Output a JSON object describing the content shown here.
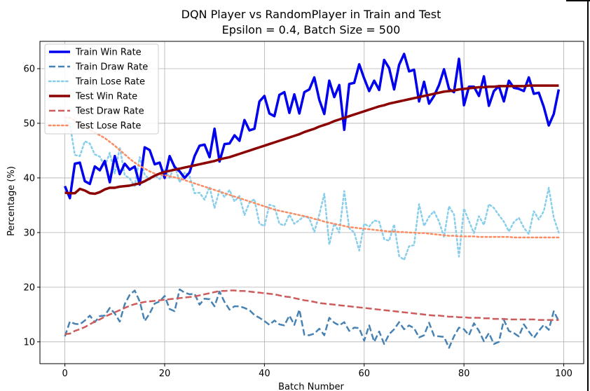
{
  "chart_data": {
    "type": "line",
    "title": "DQN Player vs RandomPlayer in Train and Test",
    "subtitle": "Epsilon = 0.4, Batch Size = 500",
    "xlabel": "Batch Number",
    "ylabel": "Percentage (%)",
    "xlim": [
      -5,
      104
    ],
    "ylim": [
      6,
      65
    ],
    "xticks": [
      0,
      20,
      40,
      60,
      80,
      100
    ],
    "yticks": [
      10,
      20,
      30,
      40,
      50,
      60
    ],
    "grid": true,
    "legend_position": "top-left",
    "x": [
      0,
      1,
      2,
      3,
      4,
      5,
      6,
      7,
      8,
      9,
      10,
      11,
      12,
      13,
      14,
      15,
      16,
      17,
      18,
      19,
      20,
      21,
      22,
      23,
      24,
      25,
      26,
      27,
      28,
      29,
      30,
      31,
      32,
      33,
      34,
      35,
      36,
      37,
      38,
      39,
      40,
      41,
      42,
      43,
      44,
      45,
      46,
      47,
      48,
      49,
      50,
      51,
      52,
      53,
      54,
      55,
      56,
      57,
      58,
      59,
      60,
      61,
      62,
      63,
      64,
      65,
      66,
      67,
      68,
      69,
      70,
      71,
      72,
      73,
      74,
      75,
      76,
      77,
      78,
      79,
      80,
      81,
      82,
      83,
      84,
      85,
      86,
      87,
      88,
      89,
      90,
      91,
      92,
      93,
      94,
      95,
      96,
      97,
      98,
      99
    ],
    "series": [
      {
        "name": "Train Win Rate",
        "color": "#0000ee",
        "style": "solid",
        "width": 3.5,
        "values": [
          38.5,
          36.3,
          42.6,
          42.8,
          39.4,
          38.9,
          42.1,
          41.4,
          43.1,
          39.2,
          44.0,
          40.7,
          42.6,
          41.5,
          42.1,
          38.8,
          45.6,
          45.1,
          42.5,
          42.8,
          40.0,
          44.0,
          42.0,
          41.2,
          40.0,
          41.0,
          44.0,
          45.9,
          46.1,
          43.8,
          49.0,
          43.0,
          46.2,
          46.3,
          47.8,
          46.8,
          50.6,
          48.7,
          49.0,
          54.0,
          55.0,
          51.8,
          51.3,
          55.2,
          55.7,
          51.9,
          55.3,
          51.8,
          55.7,
          56.2,
          58.4,
          54.3,
          51.7,
          57.8,
          54.8,
          57.0,
          48.8,
          57.2,
          57.4,
          60.8,
          58.2,
          55.9,
          57.8,
          56.1,
          61.6,
          60.1,
          56.2,
          60.7,
          62.7,
          59.5,
          59.8,
          54.0,
          57.6,
          53.6,
          55.0,
          57.0,
          59.9,
          56.3,
          55.7,
          61.8,
          53.3,
          56.7,
          56.7,
          55.0,
          58.6,
          53.2,
          55.9,
          56.8,
          54.0,
          57.8,
          56.5,
          56.3,
          55.9,
          58.4,
          55.4,
          55.6,
          53.0,
          49.6,
          51.7,
          56.2
        ]
      },
      {
        "name": "Train Draw Rate",
        "color": "#4682b4",
        "style": "dashed",
        "width": 2.5,
        "values": [
          11.0,
          13.7,
          13.3,
          13.2,
          13.9,
          14.8,
          13.6,
          14.7,
          14.8,
          16.2,
          15.2,
          13.7,
          16.9,
          18.6,
          19.4,
          17.4,
          13.8,
          15.2,
          17.0,
          17.4,
          18.4,
          16.0,
          15.6,
          19.6,
          19.0,
          18.7,
          18.8,
          16.8,
          17.9,
          17.8,
          16.5,
          19.2,
          17.3,
          15.9,
          16.5,
          16.5,
          16.2,
          15.8,
          14.9,
          14.4,
          13.8,
          13.1,
          13.9,
          13.2,
          13.0,
          14.8,
          13.1,
          15.9,
          11.3,
          11.2,
          11.5,
          12.4,
          11.2,
          14.4,
          13.5,
          13.0,
          13.6,
          12.0,
          12.6,
          12.5,
          10.2,
          13.0,
          10.0,
          11.9,
          9.6,
          11.4,
          12.3,
          13.6,
          12.3,
          13.0,
          12.5,
          10.8,
          11.2,
          13.5,
          11.1,
          11.0,
          10.9,
          8.9,
          11.0,
          12.6,
          12.3,
          11.2,
          13.4,
          12.0,
          10.1,
          11.6,
          9.6,
          10.0,
          14.0,
          12.0,
          11.6,
          11.0,
          13.2,
          11.9,
          10.7,
          12.0,
          13.1,
          12.2,
          15.6,
          13.8
        ]
      },
      {
        "name": "Train Lose Rate",
        "color": "#87ceeb",
        "style": "dotted",
        "width": 2.5,
        "values": [
          50.5,
          49.9,
          44.2,
          44.0,
          46.7,
          46.3,
          44.3,
          43.9,
          42.1,
          44.6,
          40.8,
          45.6,
          40.5,
          39.9,
          38.5,
          43.8,
          40.6,
          39.7,
          40.5,
          39.8,
          41.6,
          40.0,
          42.4,
          39.2,
          41.0,
          40.3,
          37.2,
          37.3,
          36.0,
          38.4,
          34.5,
          37.8,
          36.5,
          37.8,
          35.7,
          36.7,
          33.2,
          35.5,
          36.1,
          31.6,
          31.2,
          35.1,
          34.8,
          31.6,
          31.3,
          33.3,
          31.6,
          32.3,
          33.0,
          32.6,
          30.1,
          33.3,
          37.1,
          27.8,
          31.7,
          30.0,
          37.6,
          30.8,
          30.0,
          26.7,
          31.6,
          31.1,
          32.2,
          32.0,
          28.8,
          28.5,
          31.5,
          25.7,
          25.0,
          27.5,
          27.7,
          35.2,
          31.2,
          32.9,
          33.9,
          32.0,
          29.2,
          34.8,
          33.3,
          25.6,
          34.4,
          32.1,
          29.9,
          33.0,
          31.4,
          35.2,
          34.5,
          33.2,
          32.0,
          30.2,
          31.9,
          32.7,
          30.9,
          29.7,
          33.9,
          32.4,
          33.9,
          38.2,
          32.7,
          30.0
        ]
      },
      {
        "name": "Test Win Rate",
        "color": "#8b0000",
        "style": "solid",
        "width": 3.5,
        "values": [
          37.3,
          37.2,
          37.2,
          38.0,
          37.7,
          37.2,
          37.1,
          37.4,
          37.9,
          38.2,
          38.2,
          38.4,
          38.5,
          38.6,
          38.8,
          39.0,
          39.4,
          39.9,
          40.4,
          40.8,
          41.1,
          41.3,
          41.5,
          41.7,
          41.9,
          42.1,
          42.3,
          42.5,
          42.7,
          42.9,
          43.1,
          43.4,
          43.6,
          43.8,
          44.1,
          44.4,
          44.7,
          45.0,
          45.3,
          45.6,
          45.9,
          46.2,
          46.5,
          46.8,
          47.1,
          47.4,
          47.7,
          48.0,
          48.4,
          48.7,
          49.0,
          49.4,
          49.7,
          50.0,
          50.4,
          50.7,
          51.0,
          51.3,
          51.6,
          51.9,
          52.2,
          52.5,
          52.8,
          53.1,
          53.3,
          53.6,
          53.8,
          54.0,
          54.2,
          54.4,
          54.6,
          54.8,
          55.0,
          55.2,
          55.4,
          55.6,
          55.8,
          55.9,
          56.0,
          56.2,
          56.3,
          56.4,
          56.5,
          56.6,
          56.6,
          56.7,
          56.7,
          56.8,
          56.8,
          56.8,
          56.8,
          56.8,
          56.8,
          56.9,
          56.9,
          56.9,
          56.9,
          56.9,
          56.9,
          56.9
        ]
      },
      {
        "name": "Test Draw Rate",
        "color": "#cd5c5c",
        "style": "dashed",
        "width": 2.5,
        "values": [
          11.4,
          11.5,
          12.0,
          12.3,
          12.7,
          13.2,
          13.7,
          14.1,
          14.6,
          15.0,
          15.4,
          15.8,
          16.2,
          16.6,
          16.9,
          17.1,
          17.3,
          17.4,
          17.5,
          17.6,
          17.7,
          17.8,
          17.9,
          18.0,
          18.1,
          18.2,
          18.3,
          18.5,
          18.7,
          18.9,
          19.1,
          19.3,
          19.3,
          19.4,
          19.4,
          19.3,
          19.3,
          19.2,
          19.1,
          19.0,
          18.9,
          18.8,
          18.7,
          18.5,
          18.3,
          18.2,
          18.0,
          17.8,
          17.6,
          17.5,
          17.3,
          17.1,
          17.0,
          16.9,
          16.8,
          16.7,
          16.6,
          16.5,
          16.4,
          16.3,
          16.2,
          16.1,
          16.0,
          15.9,
          15.8,
          15.7,
          15.6,
          15.5,
          15.4,
          15.3,
          15.2,
          15.1,
          15.0,
          14.9,
          14.8,
          14.8,
          14.7,
          14.6,
          14.6,
          14.5,
          14.5,
          14.4,
          14.4,
          14.4,
          14.3,
          14.3,
          14.2,
          14.2,
          14.2,
          14.1,
          14.1,
          14.1,
          14.1,
          14.1,
          14.1,
          14.0,
          14.0,
          14.0,
          14.0,
          14.0
        ]
      },
      {
        "name": "Test Lose Rate",
        "color": "#fa8c64",
        "style": "dotted",
        "width": 2.5,
        "values": [
          51.1,
          51.0,
          50.5,
          49.8,
          49.3,
          48.8,
          48.3,
          47.8,
          47.3,
          46.6,
          45.9,
          45.1,
          44.3,
          43.5,
          42.8,
          42.2,
          41.7,
          41.2,
          40.8,
          40.6,
          40.5,
          40.3,
          40.1,
          39.9,
          39.6,
          39.3,
          39.0,
          38.7,
          38.4,
          38.1,
          37.8,
          37.5,
          37.2,
          36.9,
          36.6,
          36.3,
          36.0,
          35.7,
          35.4,
          35.1,
          34.8,
          34.5,
          34.2,
          34.0,
          33.8,
          33.6,
          33.4,
          33.2,
          33.0,
          32.8,
          32.5,
          32.3,
          32.0,
          31.8,
          31.6,
          31.4,
          31.2,
          31.0,
          30.9,
          30.8,
          30.7,
          30.6,
          30.5,
          30.4,
          30.3,
          30.2,
          30.2,
          30.1,
          30.1,
          30.0,
          30.0,
          29.9,
          29.9,
          29.8,
          29.7,
          29.6,
          29.5,
          29.4,
          29.4,
          29.3,
          29.3,
          29.3,
          29.3,
          29.2,
          29.2,
          29.2,
          29.2,
          29.2,
          29.2,
          29.2,
          29.1,
          29.1,
          29.1,
          29.1,
          29.1,
          29.1,
          29.1,
          29.1,
          29.1,
          29.1
        ]
      }
    ]
  }
}
